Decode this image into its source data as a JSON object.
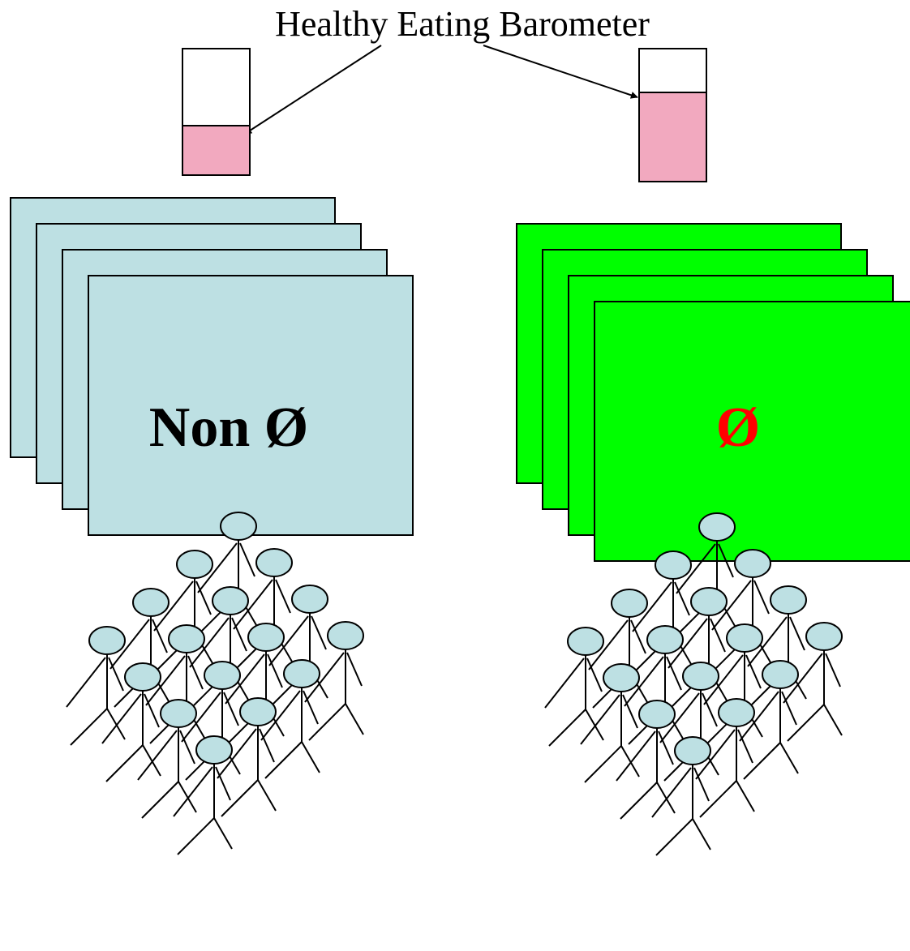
{
  "title": "Healthy Eating Barometer",
  "left_group": {
    "label": "Non Ø",
    "barometer_fill": 0.39,
    "card_color": "#bde0e3",
    "label_color": "#000000"
  },
  "right_group": {
    "label": "Ø",
    "barometer_fill": 0.67,
    "card_color": "#00ff00",
    "label_color": "#ff0000"
  },
  "colors": {
    "barometer_fill": "#f2a9bf",
    "figure_head": "#bde0e3",
    "outline": "#000000",
    "background": "#ffffff"
  },
  "icons": [
    "stick-figure-icon",
    "barometer-icon",
    "arrow-icon"
  ]
}
